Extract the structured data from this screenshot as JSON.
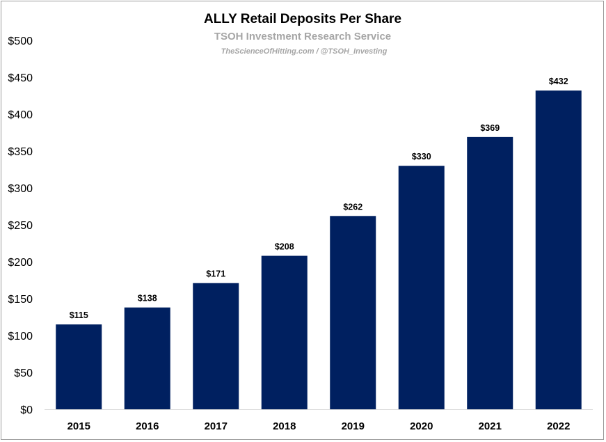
{
  "chart_data": {
    "type": "bar",
    "title": "ALLY Retail Deposits Per Share",
    "subtitle": "TSOH Investment Research Service",
    "credit": "TheScienceOfHitting.com / @TSOH_Investing",
    "categories": [
      "2015",
      "2016",
      "2017",
      "2018",
      "2019",
      "2020",
      "2021",
      "2022"
    ],
    "values": [
      115,
      138,
      171,
      208,
      262,
      330,
      369,
      432
    ],
    "data_labels": [
      "$115",
      "$138",
      "$171",
      "$208",
      "$262",
      "$330",
      "$369",
      "$432"
    ],
    "ylim": [
      0,
      500
    ],
    "yticks": [
      0,
      50,
      100,
      150,
      200,
      250,
      300,
      350,
      400,
      450,
      500
    ],
    "ytick_labels": [
      "$0",
      "$50",
      "$100",
      "$150",
      "$200",
      "$250",
      "$300",
      "$350",
      "$400",
      "$450",
      "$500"
    ],
    "xlabel": "",
    "ylabel": "",
    "grid": false,
    "legend": "none",
    "bar_color": "#002060"
  }
}
